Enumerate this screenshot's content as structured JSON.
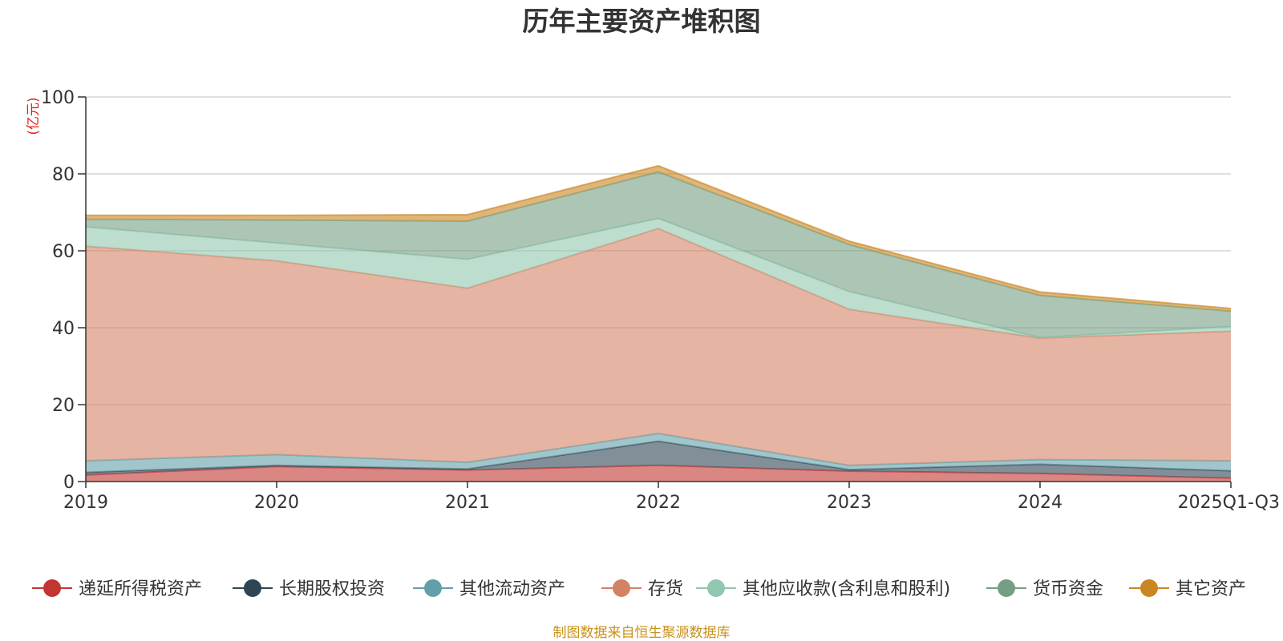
{
  "chart_data": {
    "type": "area",
    "stacked": true,
    "title": "历年主要资产堆积图",
    "unit_label": "(亿元)",
    "source": "制图数据来自恒生聚源数据库",
    "categories": [
      "2019",
      "2020",
      "2021",
      "2022",
      "2023",
      "2024",
      "2025Q1-Q3"
    ],
    "ylim": [
      0,
      100
    ],
    "yticks": [
      0,
      20,
      40,
      60,
      80,
      100
    ],
    "grid": true,
    "legend_position": "bottom",
    "series": [
      {
        "name": "递延所得税资产",
        "color": "#c23531",
        "values": [
          1.7,
          3.9,
          3.0,
          4.2,
          2.7,
          2.1,
          0.9
        ]
      },
      {
        "name": "长期股权投资",
        "color": "#2f4554",
        "values": [
          0.7,
          0.3,
          0.3,
          6.3,
          0.4,
          2.4,
          1.9
        ]
      },
      {
        "name": "其他流动资产",
        "color": "#61a0a8",
        "values": [
          3.0,
          2.8,
          1.7,
          2.0,
          1.1,
          1.2,
          2.6
        ]
      },
      {
        "name": "存货",
        "color": "#d48265",
        "values": [
          55.8,
          50.4,
          45.3,
          53.3,
          40.6,
          31.6,
          33.7
        ]
      },
      {
        "name": "其他应收款(含利息和股利)",
        "color": "#91c7ae",
        "values": [
          5.0,
          4.6,
          7.5,
          2.6,
          4.6,
          0.1,
          1.2
        ]
      },
      {
        "name": "货币资金",
        "color": "#749f83",
        "values": [
          2.0,
          6.0,
          9.9,
          12.1,
          12.2,
          11.0,
          4.0
        ]
      },
      {
        "name": "其它资产",
        "color": "#ca8622",
        "values": [
          1.0,
          1.2,
          1.7,
          1.6,
          0.9,
          0.9,
          0.7
        ]
      }
    ]
  }
}
